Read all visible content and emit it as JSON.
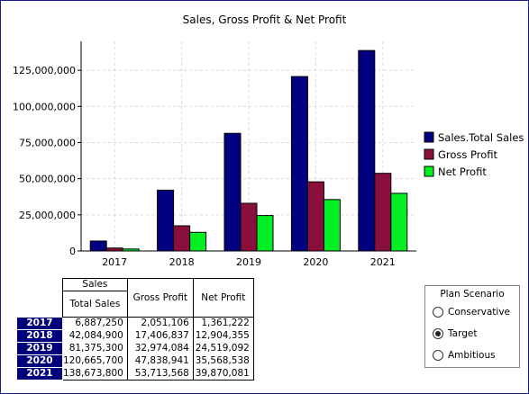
{
  "chart_data": {
    "type": "bar",
    "title": "Sales, Gross Profit & Net Profit",
    "categories": [
      "2017",
      "2018",
      "2019",
      "2020",
      "2021"
    ],
    "series": [
      {
        "name": "Sales.Total Sales",
        "color": "#000080",
        "values": [
          6887250,
          42084900,
          81375300,
          120665700,
          138673800
        ]
      },
      {
        "name": "Gross Profit",
        "color": "#8b0f3c",
        "values": [
          2051106,
          17406837,
          32974084,
          47838941,
          53713568
        ]
      },
      {
        "name": "Net Profit",
        "color": "#00ee22",
        "values": [
          1361222,
          12904355,
          24519092,
          35568538,
          39870081
        ]
      }
    ],
    "y_ticks": [
      "0",
      "25,000,000",
      "50,000,000",
      "75,000,000",
      "100,000,000",
      "125,000,000"
    ],
    "ylim": [
      0,
      145000000
    ],
    "grid": true,
    "legend_position": "right"
  },
  "table": {
    "header_group": "Sales",
    "columns": [
      "Total Sales",
      "Gross Profit",
      "Net Profit"
    ],
    "rows": [
      {
        "year": "2017",
        "total_sales": "6,887,250",
        "gross_profit": "2,051,106",
        "net_profit": "1,361,222"
      },
      {
        "year": "2018",
        "total_sales": "42,084,900",
        "gross_profit": "17,406,837",
        "net_profit": "12,904,355"
      },
      {
        "year": "2019",
        "total_sales": "81,375,300",
        "gross_profit": "32,974,084",
        "net_profit": "24,519,092"
      },
      {
        "year": "2020",
        "total_sales": "120,665,700",
        "gross_profit": "47,838,941",
        "net_profit": "35,568,538"
      },
      {
        "year": "2021",
        "total_sales": "138,673,800",
        "gross_profit": "53,713,568",
        "net_profit": "39,870,081"
      }
    ]
  },
  "plan_scenario": {
    "title": "Plan Scenario",
    "options": [
      "Conservative",
      "Target",
      "Ambitious"
    ],
    "selected": "Target"
  }
}
